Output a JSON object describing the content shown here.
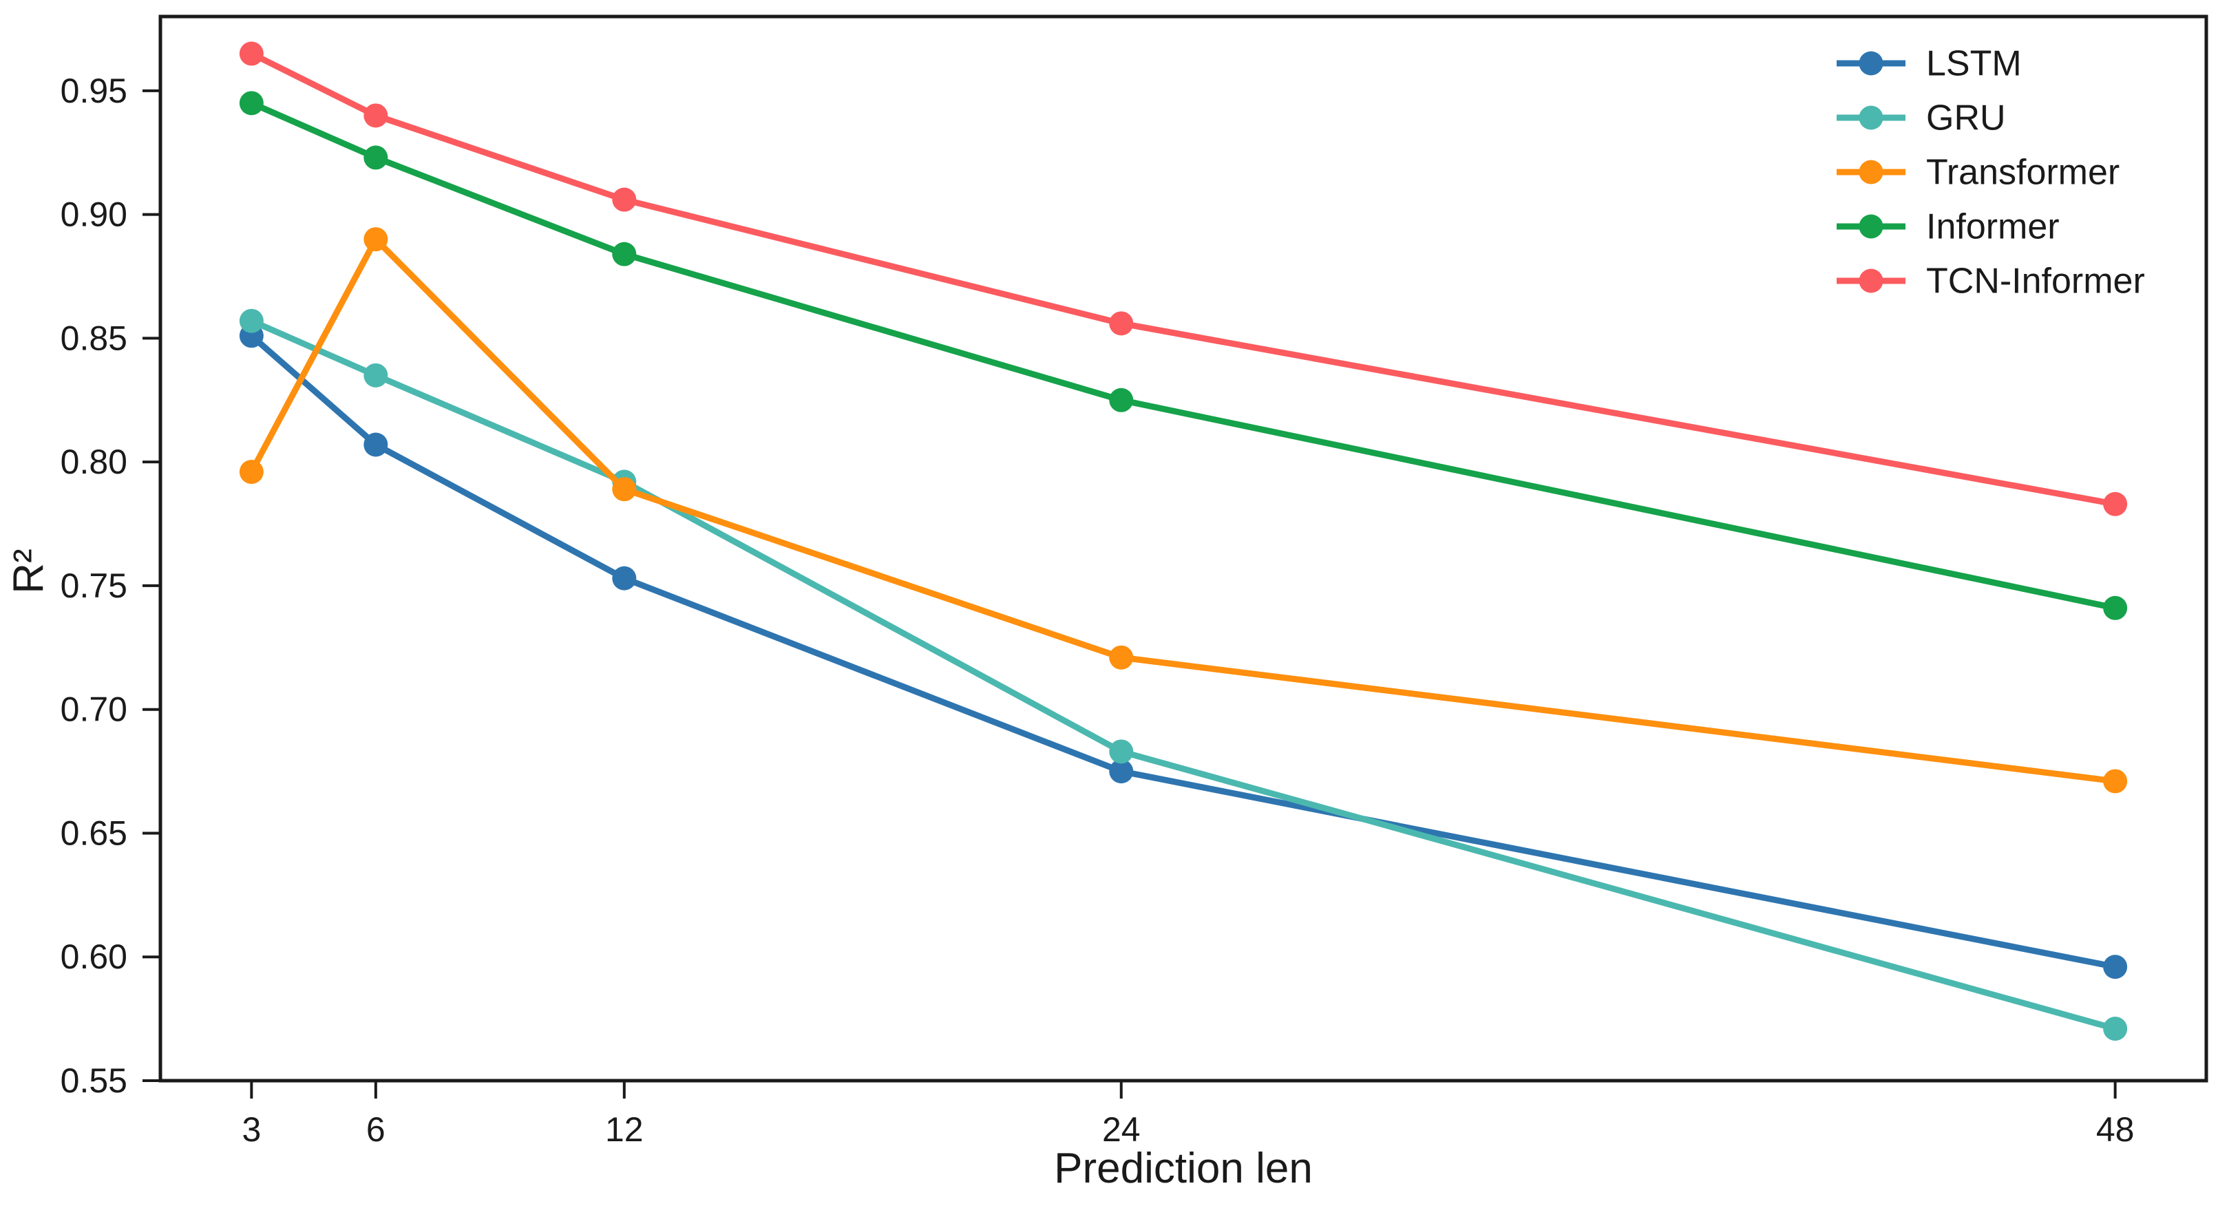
{
  "chart_data": {
    "type": "line",
    "title": "",
    "xlabel": "Prediction len",
    "ylabel": "R²",
    "x": [
      3,
      6,
      12,
      24,
      48
    ],
    "xticks": [
      3,
      6,
      12,
      24,
      48
    ],
    "yticks": [
      0.55,
      0.6,
      0.65,
      0.7,
      0.75,
      0.8,
      0.85,
      0.9,
      0.95
    ],
    "xlim": [
      0.8,
      50.2
    ],
    "ylim": [
      0.55,
      0.98
    ],
    "x_scale": "linear",
    "grid": false,
    "legend_position": "upper right",
    "frame_color": "#1a1a1a",
    "background_color": "#ffffff",
    "series": [
      {
        "name": "LSTM",
        "color": "#2E75B0",
        "values": [
          0.851,
          0.807,
          0.753,
          0.675,
          0.596
        ]
      },
      {
        "name": "GRU",
        "color": "#4BB8AF",
        "values": [
          0.857,
          0.835,
          0.792,
          0.683,
          0.571
        ]
      },
      {
        "name": "Transformer",
        "color": "#FF8F0E",
        "values": [
          0.796,
          0.89,
          0.789,
          0.721,
          0.671
        ]
      },
      {
        "name": "Informer",
        "color": "#15A24A",
        "values": [
          0.945,
          0.923,
          0.884,
          0.825,
          0.741
        ]
      },
      {
        "name": "TCN-Informer",
        "color": "#FB5B5F",
        "values": [
          0.965,
          0.94,
          0.906,
          0.856,
          0.783
        ]
      }
    ]
  }
}
